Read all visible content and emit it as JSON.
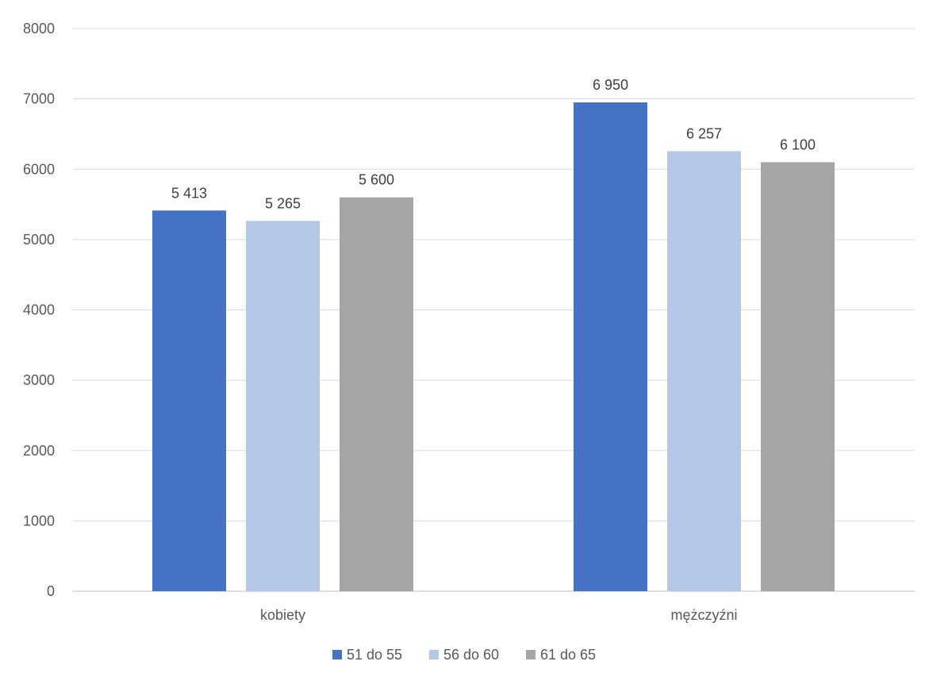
{
  "chart_data": {
    "type": "bar",
    "title": "",
    "xlabel": "",
    "ylabel": "",
    "categories": [
      "kobiety",
      "mężczyźni"
    ],
    "ylim": [
      0,
      8000
    ],
    "yticks": [
      0,
      1000,
      2000,
      3000,
      4000,
      5000,
      6000,
      7000,
      8000
    ],
    "grid": true,
    "legend_position": "bottom",
    "series": [
      {
        "name": "51 do 55",
        "color": "#4472C4",
        "values": [
          5413,
          6950
        ],
        "labels": [
          "5 413",
          "6 950"
        ]
      },
      {
        "name": "56 do 60",
        "color": "#B4C7E7",
        "values": [
          5265,
          6257
        ],
        "labels": [
          "5 265",
          "6 257"
        ]
      },
      {
        "name": "61 do 65",
        "color": "#A5A5A5",
        "values": [
          5600,
          6100
        ],
        "labels": [
          "5 600",
          "6 100"
        ]
      }
    ]
  }
}
